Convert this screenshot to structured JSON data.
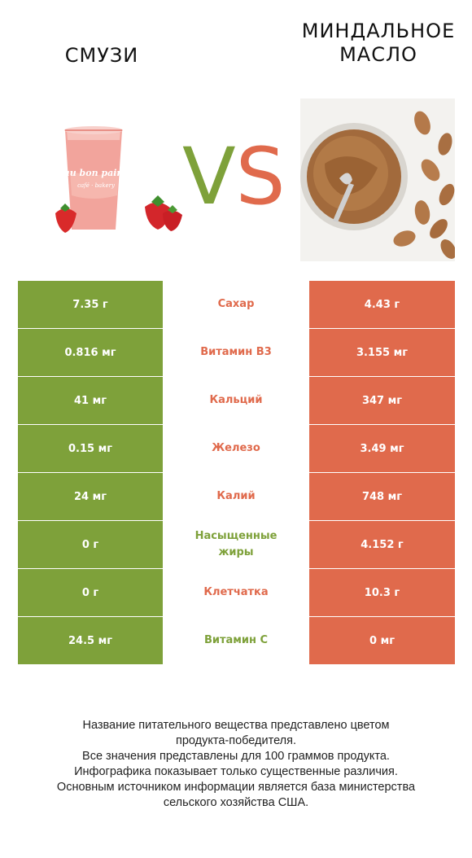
{
  "titles": {
    "left": "СМУЗИ",
    "right": "МИНДАЛЬНОЕ\nМАСЛО"
  },
  "vs": {
    "v": "V",
    "s": "S"
  },
  "colors": {
    "left_winner": "#7ea13a",
    "right_winner": "#e06a4c",
    "v_color": "#7ea13a",
    "s_color": "#e06a4c"
  },
  "images": {
    "left": "strawberry-smoothie-cup-with-strawberries",
    "right": "almond-butter-jar-with-spoon-and-almonds"
  },
  "rows": [
    {
      "left": "7.35 г",
      "name": "Сахар",
      "right": "4.43 г",
      "winner": "right"
    },
    {
      "left": "0.816 мг",
      "name": "Витамин B3",
      "right": "3.155 мг",
      "winner": "right"
    },
    {
      "left": "41 мг",
      "name": "Кальций",
      "right": "347 мг",
      "winner": "right"
    },
    {
      "left": "0.15 мг",
      "name": "Железо",
      "right": "3.49 мг",
      "winner": "right"
    },
    {
      "left": "24 мг",
      "name": "Калий",
      "right": "748 мг",
      "winner": "right"
    },
    {
      "left": "0 г",
      "name": "Насыщенные жиры",
      "right": "4.152 г",
      "winner": "left"
    },
    {
      "left": "0 г",
      "name": "Клетчатка",
      "right": "10.3 г",
      "winner": "right"
    },
    {
      "left": "24.5 мг",
      "name": "Витамин C",
      "right": "0 мг",
      "winner": "left"
    }
  ],
  "footnote": [
    "Название питательного вещества представлено цветом",
    "продукта-победителя.",
    "Все значения представлены для 100 граммов продукта.",
    "Инфографика показывает только существенные различия.",
    "Основным источником информации является база министерства",
    "сельского хозяйства США."
  ]
}
